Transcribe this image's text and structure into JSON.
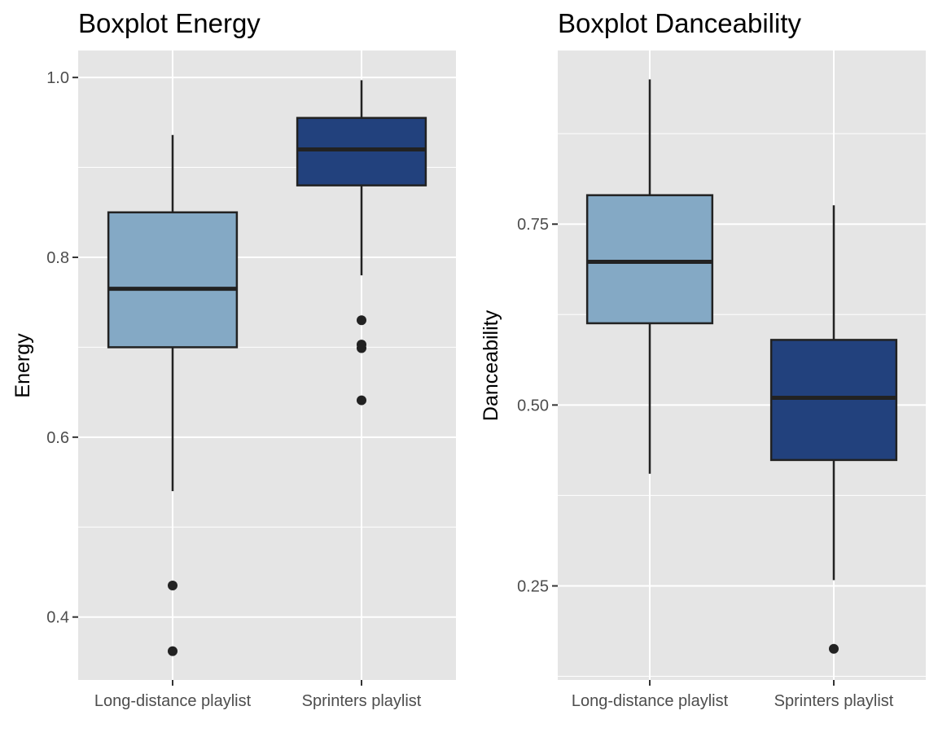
{
  "chart_data": [
    {
      "type": "box",
      "title": "Boxplot Energy",
      "xlabel": "",
      "ylabel": "Energy",
      "ylim": [
        0.33,
        1.03
      ],
      "yticks": [
        0.4,
        0.6,
        0.8,
        1.0
      ],
      "ytick_labels": [
        "0.4",
        "0.6",
        "0.8",
        "1.0"
      ],
      "categories": [
        "Long-distance playlist",
        "Sprinters playlist"
      ],
      "boxes": [
        {
          "category": "Long-distance playlist",
          "whisker_low": 0.54,
          "q1": 0.7,
          "median": 0.765,
          "q3": 0.85,
          "whisker_high": 0.936,
          "outliers": [
            0.435,
            0.362
          ],
          "fill": "#84a9c5"
        },
        {
          "category": "Sprinters playlist",
          "whisker_low": 0.78,
          "q1": 0.88,
          "median": 0.92,
          "q3": 0.955,
          "whisker_high": 0.997,
          "outliers": [
            0.73,
            0.703,
            0.699,
            0.641
          ],
          "fill": "#22417d"
        }
      ],
      "grid": true
    },
    {
      "type": "box",
      "title": "Boxplot Danceability",
      "xlabel": "",
      "ylabel": "Danceability",
      "ylim": [
        0.12,
        0.99
      ],
      "yticks": [
        0.25,
        0.5,
        0.75
      ],
      "ytick_labels": [
        "0.25",
        "0.50",
        "0.75"
      ],
      "categories": [
        "Long-distance playlist",
        "Sprinters playlist"
      ],
      "boxes": [
        {
          "category": "Long-distance playlist",
          "whisker_low": 0.405,
          "q1": 0.613,
          "median": 0.698,
          "q3": 0.79,
          "whisker_high": 0.95,
          "outliers": [],
          "fill": "#84a9c5"
        },
        {
          "category": "Sprinters playlist",
          "whisker_low": 0.258,
          "q1": 0.424,
          "median": 0.51,
          "q3": 0.59,
          "whisker_high": 0.776,
          "outliers": [
            0.163
          ],
          "fill": "#22417d"
        }
      ],
      "grid": true
    }
  ],
  "colors": {
    "panel_background": "#e5e5e5",
    "grid_line": "#ffffff",
    "box_outline": "#222222",
    "tick_text": "#4d4d4d"
  }
}
